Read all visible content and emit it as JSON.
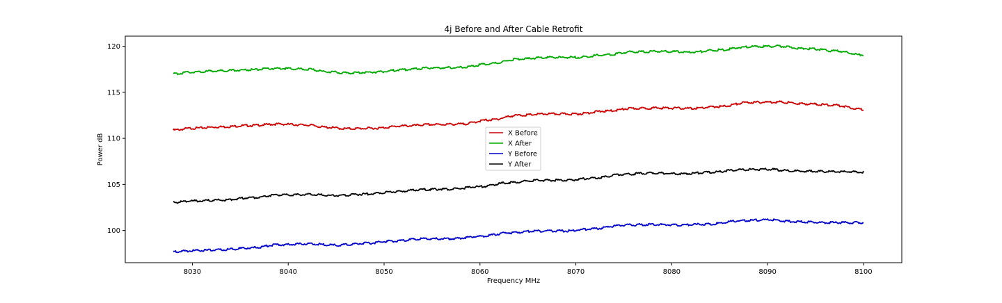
{
  "chart_data": {
    "type": "line",
    "title": "4j Before and After Cable Retrofit",
    "xlabel": "Frequency MHz",
    "ylabel": "Power dB",
    "xlim": [
      8023,
      8104
    ],
    "ylim": [
      96.5,
      121.1
    ],
    "xticks": [
      8030,
      8040,
      8050,
      8060,
      8070,
      8080,
      8090,
      8100
    ],
    "yticks": [
      100,
      105,
      110,
      115,
      120
    ],
    "legend": "center",
    "grid": false,
    "series": [
      {
        "name": "X Before",
        "color": "#cc0000",
        "points": [
          [
            8028,
            110.9
          ],
          [
            8030,
            111.1
          ],
          [
            8033,
            111.25
          ],
          [
            8036,
            111.4
          ],
          [
            8039,
            111.55
          ],
          [
            8042,
            111.45
          ],
          [
            8044,
            111.2
          ],
          [
            8046,
            111.05
          ],
          [
            8049,
            111.1
          ],
          [
            8052,
            111.35
          ],
          [
            8055,
            111.5
          ],
          [
            8058,
            111.55
          ],
          [
            8061,
            112.0
          ],
          [
            8064,
            112.5
          ],
          [
            8067,
            112.65
          ],
          [
            8070,
            112.65
          ],
          [
            8073,
            112.95
          ],
          [
            8076,
            113.25
          ],
          [
            8079,
            113.3
          ],
          [
            8082,
            113.25
          ],
          [
            8085,
            113.45
          ],
          [
            8088,
            113.9
          ],
          [
            8091,
            113.95
          ],
          [
            8094,
            113.75
          ],
          [
            8097,
            113.6
          ],
          [
            8100,
            113.15
          ]
        ]
      },
      {
        "name": "X After",
        "color": "#00aa00",
        "points": [
          [
            8028,
            117.0
          ],
          [
            8030,
            117.2
          ],
          [
            8033,
            117.35
          ],
          [
            8036,
            117.45
          ],
          [
            8039,
            117.6
          ],
          [
            8042,
            117.5
          ],
          [
            8044,
            117.25
          ],
          [
            8046,
            117.1
          ],
          [
            8049,
            117.2
          ],
          [
            8052,
            117.45
          ],
          [
            8055,
            117.65
          ],
          [
            8058,
            117.7
          ],
          [
            8061,
            118.1
          ],
          [
            8064,
            118.6
          ],
          [
            8067,
            118.8
          ],
          [
            8070,
            118.8
          ],
          [
            8073,
            119.05
          ],
          [
            8076,
            119.4
          ],
          [
            8079,
            119.45
          ],
          [
            8082,
            119.35
          ],
          [
            8085,
            119.6
          ],
          [
            8088,
            119.95
          ],
          [
            8091,
            120.0
          ],
          [
            8094,
            119.75
          ],
          [
            8097,
            119.5
          ],
          [
            8100,
            119.05
          ]
        ]
      },
      {
        "name": "Y Before",
        "color": "#0000cc",
        "points": [
          [
            8028,
            97.7
          ],
          [
            8030,
            97.8
          ],
          [
            8033,
            97.9
          ],
          [
            8036,
            98.1
          ],
          [
            8039,
            98.45
          ],
          [
            8042,
            98.55
          ],
          [
            8045,
            98.4
          ],
          [
            8048,
            98.6
          ],
          [
            8051,
            98.85
          ],
          [
            8054,
            99.1
          ],
          [
            8057,
            99.1
          ],
          [
            8060,
            99.35
          ],
          [
            8063,
            99.75
          ],
          [
            8066,
            99.95
          ],
          [
            8069,
            99.95
          ],
          [
            8072,
            100.2
          ],
          [
            8075,
            100.6
          ],
          [
            8078,
            100.65
          ],
          [
            8081,
            100.6
          ],
          [
            8084,
            100.7
          ],
          [
            8087,
            101.05
          ],
          [
            8090,
            101.15
          ],
          [
            8093,
            100.95
          ],
          [
            8096,
            100.85
          ],
          [
            8100,
            100.85
          ]
        ]
      },
      {
        "name": "Y After",
        "color": "#000000",
        "points": [
          [
            8028,
            103.05
          ],
          [
            8030,
            103.2
          ],
          [
            8033,
            103.3
          ],
          [
            8036,
            103.55
          ],
          [
            8039,
            103.85
          ],
          [
            8042,
            103.9
          ],
          [
            8045,
            103.8
          ],
          [
            8048,
            103.95
          ],
          [
            8051,
            104.2
          ],
          [
            8054,
            104.45
          ],
          [
            8057,
            104.5
          ],
          [
            8060,
            104.75
          ],
          [
            8063,
            105.2
          ],
          [
            8066,
            105.45
          ],
          [
            8069,
            105.45
          ],
          [
            8072,
            105.7
          ],
          [
            8075,
            106.1
          ],
          [
            8078,
            106.25
          ],
          [
            8081,
            106.15
          ],
          [
            8084,
            106.3
          ],
          [
            8087,
            106.6
          ],
          [
            8090,
            106.65
          ],
          [
            8093,
            106.45
          ],
          [
            8096,
            106.4
          ],
          [
            8100,
            106.35
          ]
        ]
      }
    ]
  }
}
